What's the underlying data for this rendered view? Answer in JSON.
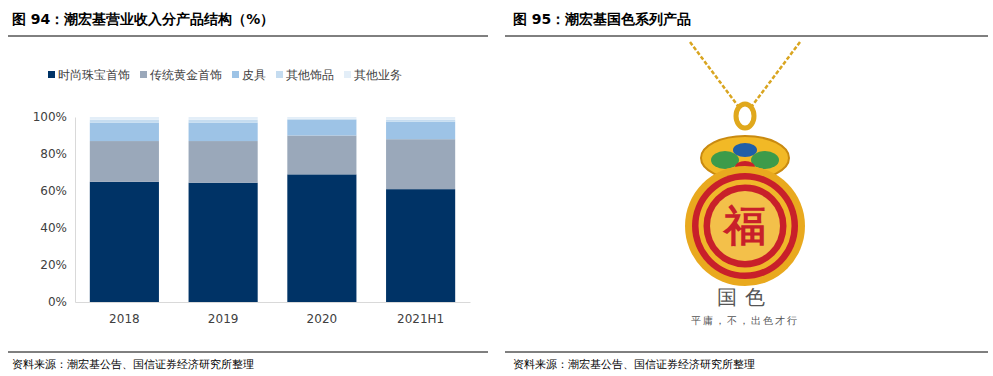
{
  "chart_data": {
    "type": "bar",
    "stacked": true,
    "title": "图 94：潮宏基营业收入分产品结构（%）",
    "source": "资料来源：潮宏基公告、国信证券经济研究所整理",
    "categories": [
      "2018",
      "2019",
      "2020",
      "2021H1"
    ],
    "series": [
      {
        "name": "时尚珠宝首饰",
        "color": "#003366",
        "values": [
          65,
          64.5,
          69,
          61
        ]
      },
      {
        "name": "传统黄金首饰",
        "color": "#9aa8ba",
        "values": [
          22,
          22.5,
          21,
          27
        ]
      },
      {
        "name": "皮具",
        "color": "#9dc3e6",
        "values": [
          10,
          10,
          8.5,
          9.5
        ]
      },
      {
        "name": "其他饰品",
        "color": "#c5dcf0",
        "values": [
          1.5,
          1.5,
          0.5,
          1
        ]
      },
      {
        "name": "其他业务",
        "color": "#e3eef8",
        "values": [
          1.5,
          1.5,
          1,
          1.5
        ]
      }
    ],
    "ylim": [
      0,
      100
    ],
    "yticks": [
      {
        "value": 0,
        "label": "0%"
      },
      {
        "value": 20,
        "label": "20%"
      },
      {
        "value": 40,
        "label": "40%"
      },
      {
        "value": 60,
        "label": "60%"
      },
      {
        "value": 80,
        "label": "80%"
      },
      {
        "value": 100,
        "label": "100%"
      }
    ],
    "grid": false,
    "legend": "top"
  },
  "image_panel": {
    "title": "图 95：潮宏基国色系列产品",
    "character": "福",
    "caption": "国色",
    "slogan": "平庸，不，出色才行",
    "source": "资料来源：潮宏基公告、国信证券经济研究所整理"
  }
}
